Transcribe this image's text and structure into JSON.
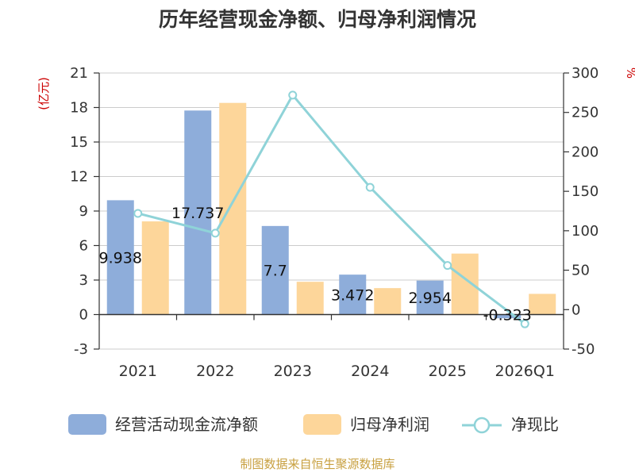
{
  "chart_data": {
    "type": "bar",
    "title": "历年经营现金净额、归母净利润情况",
    "categories": [
      "2021",
      "2022",
      "2023",
      "2024",
      "2025",
      "2026Q1"
    ],
    "series": [
      {
        "name": "经营活动现金流净额",
        "axis": "left",
        "color": "#8eadda",
        "values": [
          9.938,
          17.737,
          7.7,
          3.472,
          2.954,
          -0.323
        ],
        "labels": [
          "9.938",
          "17.737",
          "7.7",
          "3.472",
          "2.954",
          "-0.323"
        ]
      },
      {
        "name": "归母净利润",
        "axis": "left",
        "color": "#fdd69a",
        "values": [
          8.1,
          18.4,
          2.85,
          2.3,
          5.3,
          1.8
        ]
      },
      {
        "name": "净现比",
        "axis": "right",
        "type": "line",
        "color": "#8fd3d8",
        "values": [
          122,
          97,
          272,
          155,
          56,
          -18
        ]
      }
    ],
    "y_left": {
      "unit": "(亿元)",
      "min": -3,
      "max": 21,
      "ticks": [
        "21",
        "18",
        "15",
        "12",
        "9",
        "6",
        "3",
        "0",
        "-3"
      ]
    },
    "y_right": {
      "unit": "%",
      "min": -50,
      "max": 300,
      "ticks": [
        "300",
        "250",
        "200",
        "150",
        "100",
        "50",
        "0",
        "-50"
      ]
    },
    "legend": [
      "经营活动现金流净额",
      "归母净利润",
      "净现比"
    ],
    "grid": true
  },
  "source": "制图数据来自恒生聚源数据库"
}
